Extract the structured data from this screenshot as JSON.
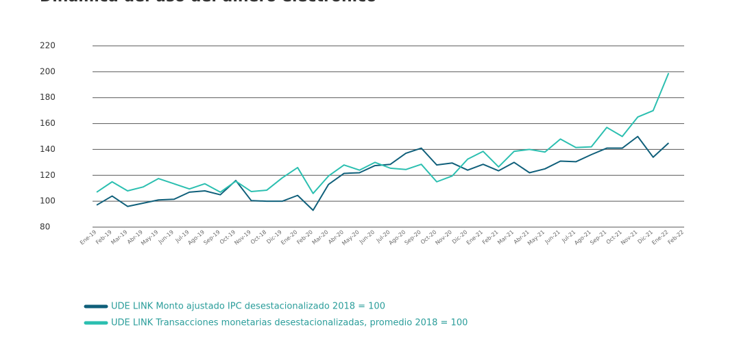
{
  "chart_data": {
    "type": "line",
    "title": "Dinámica del uso del dinero electrónico",
    "categories": [
      "Ene-19",
      "Feb-19",
      "Mar-19",
      "Abr-19",
      "May-19",
      "Jun-19",
      "Jul-19",
      "Ago-19",
      "Sep-19",
      "Oct-19",
      "Nov-19",
      "Oct-18",
      "Dic-19",
      "Ene-20",
      "Feb-20",
      "Mar-20",
      "Abr-20",
      "May-20",
      "Jun-20",
      "Jul-20",
      "Ago-20",
      "Sep-20",
      "Oct-20",
      "Nov-20",
      "Dic-20",
      "Ene-21",
      "Feb-21",
      "Mar-21",
      "Abr-21",
      "May-21",
      "Jun-21",
      "Jul-21",
      "Ago-21",
      "Sep-21",
      "Oct-21",
      "Nov-21",
      "Dic-21",
      "Ene-22",
      "Feb-22"
    ],
    "series": [
      {
        "name": "UDE LINK Monto ajustado IPC desestacionalizado 2018 = 100",
        "color": "#0f5f7a",
        "values": [
          97,
          104,
          96,
          98.5,
          101,
          101.5,
          107,
          108,
          105,
          116,
          100.5,
          100,
          100,
          104.5,
          93,
          113,
          121.5,
          122,
          127.5,
          128.5,
          137,
          141,
          128,
          129.5,
          124,
          128.5,
          123.5,
          130,
          122,
          125,
          131,
          130.5,
          136,
          141,
          141,
          150,
          134,
          145,
          null
        ]
      },
      {
        "name": "UDE LINK Transacciones monetarias desestacionalizadas, promedio 2018 = 100",
        "color": "#2bbfb0",
        "values": [
          107,
          115,
          108,
          111,
          117.5,
          113.5,
          109.5,
          113.5,
          107,
          115.5,
          107.5,
          108.5,
          118,
          126,
          106,
          119.5,
          128,
          124,
          130,
          125.5,
          124.5,
          128.5,
          115,
          119.5,
          132.5,
          138.5,
          126.5,
          138.5,
          140,
          138,
          148,
          141.5,
          142,
          157,
          150,
          165,
          170,
          199,
          null
        ]
      }
    ],
    "ylim": [
      80,
      220
    ],
    "yticks": [
      80,
      100,
      120,
      140,
      160,
      180,
      200,
      220
    ],
    "grid": true
  }
}
